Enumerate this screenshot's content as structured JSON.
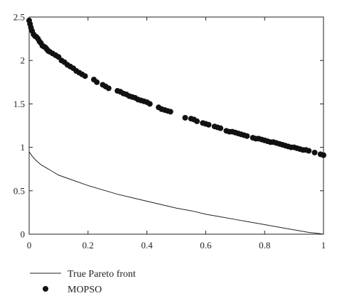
{
  "chart_data": {
    "type": "scatter",
    "title": "",
    "xlabel": "",
    "ylabel": "",
    "xlim": [
      0,
      1
    ],
    "ylim": [
      0,
      2.5
    ],
    "x_ticks": [
      "0",
      "0.2",
      "0.4",
      "0.6",
      "0.8",
      "1"
    ],
    "y_ticks": [
      "0",
      "0.5",
      "1",
      "1.5",
      "2",
      "2.5"
    ],
    "grid": false,
    "legend_position": "below",
    "series": [
      {
        "name": "True Pareto front",
        "kind": "line",
        "color": "#222222",
        "x": [
          0.0,
          0.01,
          0.02,
          0.04,
          0.06,
          0.08,
          0.1,
          0.15,
          0.2,
          0.25,
          0.3,
          0.35,
          0.4,
          0.45,
          0.5,
          0.55,
          0.6,
          0.65,
          0.7,
          0.75,
          0.8,
          0.85,
          0.9,
          0.95,
          0.98,
          1.0
        ],
        "y": [
          0.95,
          0.9,
          0.86,
          0.8,
          0.76,
          0.72,
          0.68,
          0.62,
          0.56,
          0.51,
          0.46,
          0.42,
          0.38,
          0.34,
          0.3,
          0.27,
          0.23,
          0.2,
          0.17,
          0.14,
          0.11,
          0.08,
          0.05,
          0.02,
          0.01,
          0.0
        ]
      },
      {
        "name": "MOPSO",
        "kind": "scatter",
        "color": "#111111",
        "x": [
          0.0,
          0.003,
          0.006,
          0.01,
          0.015,
          0.02,
          0.025,
          0.03,
          0.035,
          0.04,
          0.045,
          0.05,
          0.055,
          0.06,
          0.065,
          0.07,
          0.08,
          0.09,
          0.1,
          0.11,
          0.12,
          0.13,
          0.14,
          0.15,
          0.16,
          0.17,
          0.18,
          0.19,
          0.22,
          0.23,
          0.25,
          0.26,
          0.27,
          0.3,
          0.31,
          0.32,
          0.33,
          0.34,
          0.35,
          0.36,
          0.37,
          0.38,
          0.39,
          0.4,
          0.41,
          0.44,
          0.45,
          0.46,
          0.47,
          0.48,
          0.53,
          0.55,
          0.56,
          0.57,
          0.59,
          0.6,
          0.61,
          0.63,
          0.64,
          0.65,
          0.67,
          0.68,
          0.69,
          0.7,
          0.71,
          0.72,
          0.73,
          0.74,
          0.76,
          0.77,
          0.78,
          0.79,
          0.8,
          0.81,
          0.82,
          0.83,
          0.84,
          0.85,
          0.86,
          0.87,
          0.88,
          0.89,
          0.9,
          0.91,
          0.92,
          0.93,
          0.94,
          0.95,
          0.97,
          0.99,
          1.0
        ],
        "y": [
          2.46,
          2.42,
          2.38,
          2.34,
          2.3,
          2.28,
          2.27,
          2.25,
          2.22,
          2.2,
          2.17,
          2.16,
          2.15,
          2.13,
          2.11,
          2.1,
          2.08,
          2.06,
          2.04,
          2.0,
          1.98,
          1.95,
          1.93,
          1.91,
          1.88,
          1.86,
          1.84,
          1.82,
          1.78,
          1.75,
          1.72,
          1.7,
          1.68,
          1.65,
          1.64,
          1.62,
          1.61,
          1.59,
          1.58,
          1.57,
          1.55,
          1.54,
          1.53,
          1.52,
          1.5,
          1.46,
          1.44,
          1.43,
          1.42,
          1.41,
          1.34,
          1.33,
          1.32,
          1.3,
          1.28,
          1.27,
          1.26,
          1.24,
          1.23,
          1.22,
          1.19,
          1.18,
          1.18,
          1.17,
          1.16,
          1.15,
          1.14,
          1.13,
          1.11,
          1.1,
          1.1,
          1.09,
          1.08,
          1.07,
          1.06,
          1.06,
          1.05,
          1.04,
          1.03,
          1.02,
          1.01,
          1.0,
          1.0,
          0.99,
          0.98,
          0.97,
          0.97,
          0.96,
          0.94,
          0.92,
          0.91
        ]
      }
    ]
  }
}
